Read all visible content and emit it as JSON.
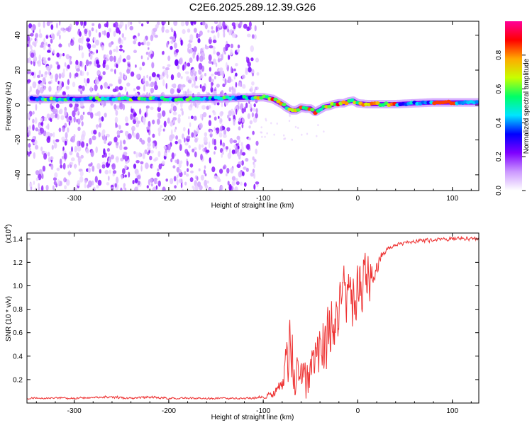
{
  "title": "C2E6.2025.289.12.39.G26",
  "chart_data": [
    {
      "type": "heatmap",
      "xlabel": "Height of straight line (km)",
      "ylabel": "Frequency (Hz)",
      "xlim": [
        -350,
        128
      ],
      "ylim": [
        -49,
        48
      ],
      "xticks": [
        -300,
        -200,
        -100,
        0,
        100
      ],
      "yticks": [
        -40,
        -20,
        0,
        20,
        40
      ],
      "colorbar": {
        "label": "Normalized spectral amplitude",
        "range": [
          0,
          1
        ],
        "ticks": [
          0.0,
          0.2,
          0.4,
          0.6,
          0.8
        ],
        "colors": [
          "#ffffff",
          "#cc99ff",
          "#7f00ff",
          "#0000ff",
          "#00e5ff",
          "#00ff66",
          "#c8ff00",
          "#ffaa00",
          "#ff0000",
          "#ff0099"
        ]
      },
      "ridge": {
        "x": [
          -345,
          -300,
          -250,
          -200,
          -150,
          -120,
          -100,
          -90,
          -80,
          -75,
          -70,
          -65,
          -60,
          -55,
          -50,
          -45,
          -40,
          -35,
          -30,
          -25,
          -20,
          -15,
          -10,
          -5,
          0,
          10,
          20,
          40,
          60,
          80,
          100,
          128
        ],
        "y": [
          3.5,
          3.5,
          3.5,
          3.5,
          3.8,
          4.2,
          4.5,
          3.5,
          0.5,
          -1.5,
          -3,
          -3,
          -1.5,
          -2,
          -2,
          -4,
          -2.5,
          -1,
          -0.5,
          0.5,
          1,
          1,
          2,
          2.5,
          1,
          0.5,
          0.5,
          0.5,
          1,
          1.5,
          1.5,
          1.5
        ]
      },
      "noise_region_x": [
        -350,
        -105
      ]
    },
    {
      "type": "line",
      "xlabel": "Height of straight line (km)",
      "ylabel": "SNR (10 * v/v)",
      "y_multiplier": "(x10",
      "y_multiplier_exp": "4",
      "y_multiplier_close": ")",
      "xlim": [
        -350,
        128
      ],
      "ylim": [
        0,
        1.45
      ],
      "xticks": [
        -300,
        -200,
        -100,
        0,
        100
      ],
      "yticks": [
        0.2,
        0.4,
        0.6,
        0.8,
        1.0,
        1.2,
        1.4
      ],
      "series_color": "#ee3333",
      "x": [
        -350,
        -320,
        -300,
        -260,
        -240,
        -220,
        -200,
        -160,
        -120,
        -100,
        -90,
        -80,
        -75,
        -72,
        -70,
        -67,
        -64,
        -60,
        -55,
        -50,
        -45,
        -40,
        -35,
        -30,
        -25,
        -20,
        -15,
        -10,
        -5,
        0,
        5,
        10,
        15,
        20,
        25,
        30,
        40,
        60,
        80,
        100,
        128
      ],
      "y": [
        0.04,
        0.045,
        0.04,
        0.05,
        0.04,
        0.05,
        0.04,
        0.04,
        0.04,
        0.05,
        0.08,
        0.15,
        0.35,
        0.55,
        0.45,
        0.3,
        0.22,
        0.2,
        0.22,
        0.3,
        0.45,
        0.55,
        0.5,
        0.6,
        0.7,
        0.75,
        0.9,
        1.0,
        0.85,
        0.95,
        1.0,
        1.05,
        1.05,
        1.15,
        1.25,
        1.3,
        1.35,
        1.38,
        1.39,
        1.4,
        1.4
      ],
      "spread": [
        0.01,
        0.01,
        0.01,
        0.015,
        0.01,
        0.015,
        0.01,
        0.01,
        0.01,
        0.015,
        0.04,
        0.1,
        0.25,
        0.3,
        0.3,
        0.25,
        0.2,
        0.18,
        0.2,
        0.22,
        0.28,
        0.3,
        0.3,
        0.3,
        0.3,
        0.3,
        0.3,
        0.3,
        0.35,
        0.35,
        0.3,
        0.25,
        0.15,
        0.08,
        0.04,
        0.03,
        0.02,
        0.02,
        0.02,
        0.02,
        0.02
      ]
    }
  ]
}
